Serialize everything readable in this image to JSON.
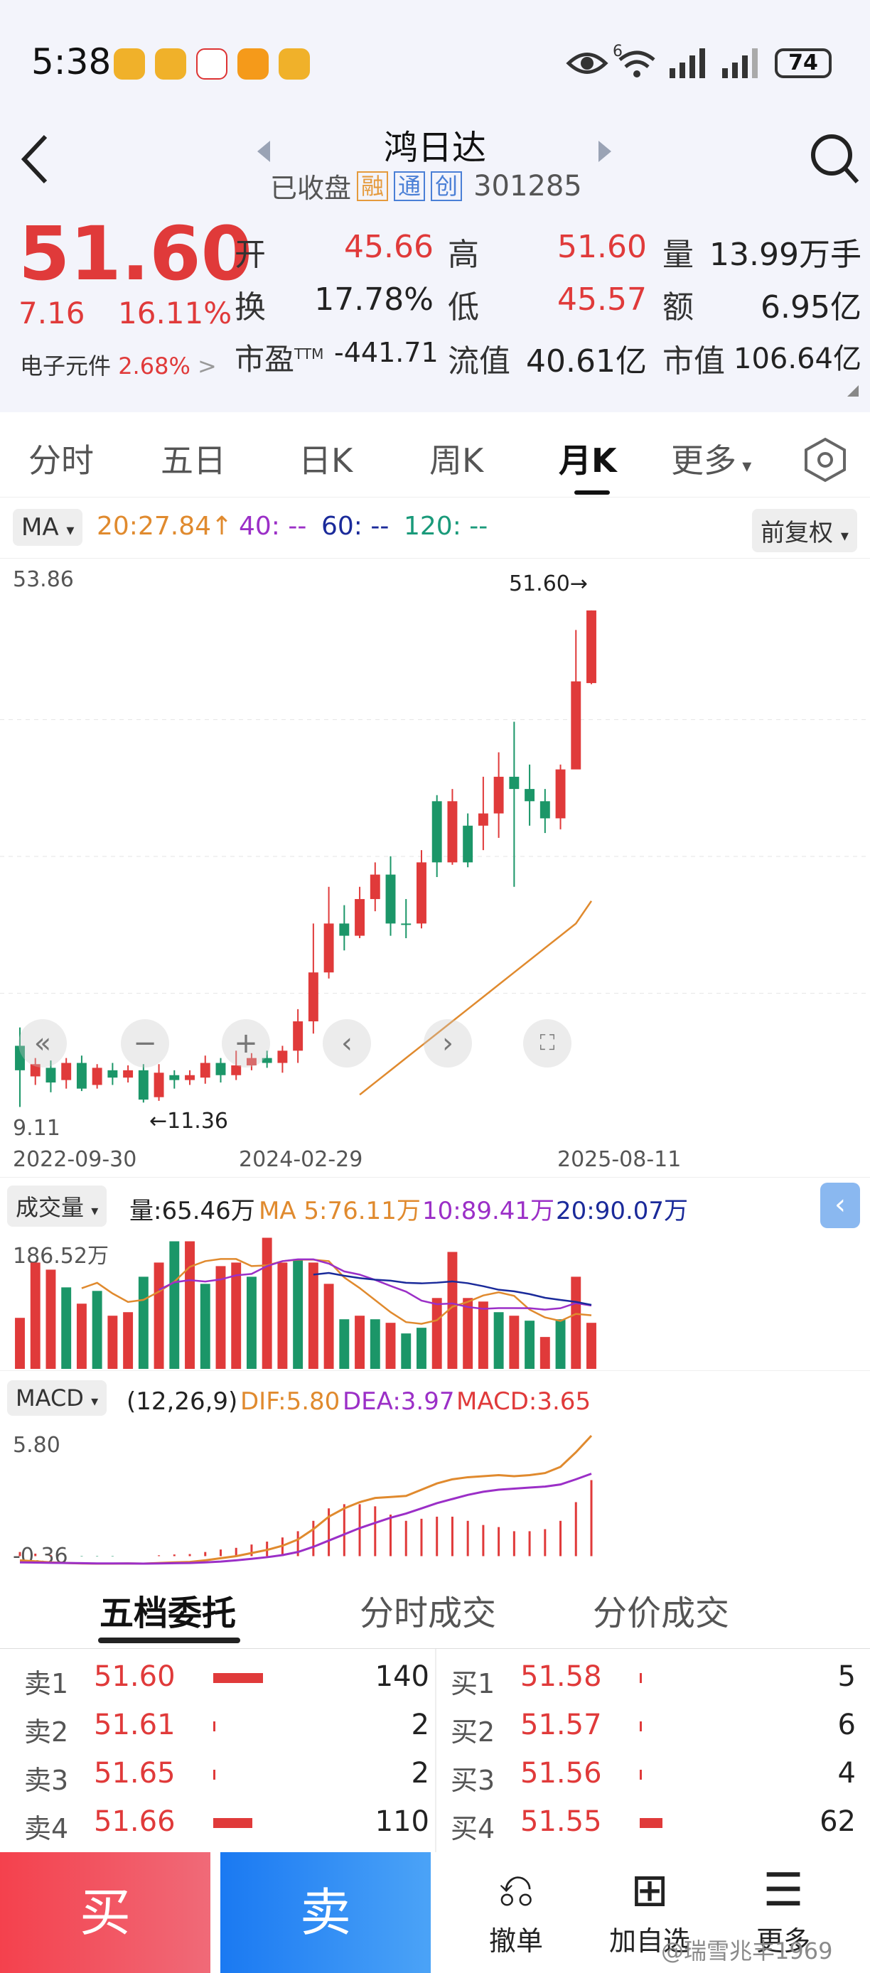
{
  "status_bar": {
    "time": "5:38",
    "battery": "74",
    "signal_label": "6"
  },
  "header": {
    "title": "鸿日达",
    "market_status": "已收盘",
    "tags": [
      "融",
      "通",
      "创"
    ],
    "code": "301285"
  },
  "quote": {
    "price": "51.60",
    "change": "7.16",
    "change_pct": "16.11%",
    "sector": "电子元件",
    "sector_pct": "2.68%",
    "fields": [
      {
        "label": "开",
        "value": "45.66",
        "red": true
      },
      {
        "label": "高",
        "value": "51.60",
        "red": true
      },
      {
        "label": "量",
        "value": "13.99万手",
        "red": false
      },
      {
        "label": "换",
        "value": "17.78%",
        "red": false
      },
      {
        "label": "低",
        "value": "45.57",
        "red": true
      },
      {
        "label": "额",
        "value": "6.95亿",
        "red": false
      },
      {
        "label": "市盈TTM",
        "value": "-441.71",
        "red": false
      },
      {
        "label": "流值",
        "value": "40.61亿",
        "red": false
      },
      {
        "label": "市值",
        "value": "106.64亿",
        "red": false
      }
    ]
  },
  "tabs": [
    "分时",
    "五日",
    "日K",
    "周K",
    "月K",
    "更多"
  ],
  "active_tab": "月K",
  "indicator": {
    "ma_selector": "MA",
    "ma20": "20:27.84",
    "ma20_arrow": "↑",
    "ma40": "40: --",
    "ma60": "60: --",
    "ma120": "120: --",
    "adjust": "前复权"
  },
  "kline": {
    "y_max": "53.86",
    "y_min": "9.11",
    "high_label": "51.60→",
    "low_label": "←11.36",
    "dates": [
      "2022-09-30",
      "2024-02-29",
      "2025-08-11"
    ]
  },
  "volume": {
    "selector": "成交量",
    "vol": "量:65.46万",
    "ma5": "MA 5:76.11万",
    "ma10": "10:89.41万",
    "ma20": "20:90.07万",
    "y_max": "186.52万"
  },
  "macd": {
    "selector": "MACD",
    "params": "(12,26,9)",
    "dif": "DIF:5.80",
    "dea": "DEA:3.97",
    "macd": "MACD:3.65",
    "y_max": "5.80",
    "y_min": "-0.36"
  },
  "orderbook": {
    "tabs": [
      "五档委托",
      "分时成交",
      "分价成交"
    ],
    "sell": [
      {
        "label": "卖1",
        "price": "51.60",
        "vol": "140",
        "ratio": 0.7
      },
      {
        "label": "卖2",
        "price": "51.61",
        "vol": "2",
        "ratio": 0.01
      },
      {
        "label": "卖3",
        "price": "51.65",
        "vol": "2",
        "ratio": 0.01
      },
      {
        "label": "卖4",
        "price": "51.66",
        "vol": "110",
        "ratio": 0.55
      }
    ],
    "buy": [
      {
        "label": "买1",
        "price": "51.58",
        "vol": "5",
        "ratio": 0.02
      },
      {
        "label": "买2",
        "price": "51.57",
        "vol": "6",
        "ratio": 0.02
      },
      {
        "label": "买3",
        "price": "51.56",
        "vol": "4",
        "ratio": 0.02
      },
      {
        "label": "买4",
        "price": "51.55",
        "vol": "62",
        "ratio": 0.32
      }
    ]
  },
  "bottom": {
    "buy": "买",
    "sell": "卖",
    "cancel": "撤单",
    "add_watch": "加自选",
    "more": "更多"
  },
  "watermark": "@瑞雪兆丰1969",
  "chart_data": {
    "type": "candlestick",
    "title": "",
    "period": "monthly",
    "x_start": "2022-09-30",
    "x_end": "2025-08-11",
    "ylim": [
      9.11,
      53.86
    ],
    "candles": [
      [
        16,
        14,
        17.5,
        11,
        1
      ],
      [
        13.5,
        14.5,
        15,
        12.8,
        0
      ],
      [
        14.2,
        13,
        14.8,
        12.2,
        1
      ],
      [
        13.2,
        14.6,
        15,
        12.5,
        0
      ],
      [
        14.6,
        12.5,
        15.2,
        12.3,
        1
      ],
      [
        12.8,
        14.2,
        14.5,
        12.5,
        0
      ],
      [
        14,
        13.4,
        14.6,
        12.8,
        1
      ],
      [
        13.4,
        14,
        14.4,
        13,
        0
      ],
      [
        14,
        11.6,
        14.5,
        11.36,
        1
      ],
      [
        11.8,
        13.8,
        14.5,
        11.5,
        0
      ],
      [
        13.6,
        13.2,
        14,
        12.5,
        1
      ],
      [
        13.2,
        13.6,
        14,
        12.8,
        0
      ],
      [
        13.4,
        14.6,
        15.2,
        12.9,
        0
      ],
      [
        14.6,
        13.6,
        15,
        13,
        1
      ],
      [
        13.6,
        14.4,
        15.6,
        13.2,
        0
      ],
      [
        14.4,
        15,
        15.4,
        14,
        0
      ],
      [
        15,
        14.6,
        15.6,
        14.2,
        1
      ],
      [
        14.6,
        15.6,
        16,
        13.8,
        0
      ],
      [
        15.6,
        18,
        19,
        14.6,
        0
      ],
      [
        18,
        22,
        26,
        17,
        0
      ],
      [
        22,
        26,
        29,
        21.5,
        0
      ],
      [
        26,
        25,
        27.5,
        23.8,
        1
      ],
      [
        25,
        28,
        29,
        24.8,
        0
      ],
      [
        28,
        30,
        31,
        27,
        0
      ],
      [
        30,
        26,
        31.5,
        25,
        1
      ],
      [
        26,
        26,
        28,
        24.8,
        1
      ],
      [
        26,
        31,
        32,
        25.6,
        0
      ],
      [
        31,
        36,
        36.5,
        29.8,
        1
      ],
      [
        36,
        31,
        37,
        30.8,
        0
      ],
      [
        31,
        34,
        35,
        30.6,
        1
      ],
      [
        34,
        35,
        38,
        32,
        0
      ],
      [
        35,
        38,
        40,
        33,
        0
      ],
      [
        38,
        37,
        42.5,
        29,
        1
      ],
      [
        37,
        36,
        39,
        34,
        1
      ],
      [
        36,
        34.6,
        37,
        33.4,
        1
      ],
      [
        34.6,
        38.6,
        39,
        33.7,
        0
      ],
      [
        38.6,
        45.8,
        50,
        44.8,
        0
      ],
      [
        45.66,
        51.6,
        51.6,
        45.57,
        0
      ]
    ],
    "ma20": [
      12,
      13,
      14,
      15,
      16,
      17,
      18,
      19,
      20,
      21,
      22,
      23,
      24,
      25,
      26,
      27.84
    ],
    "volume_y_max": 186.52,
    "volume": [
      [
        72,
        1
      ],
      [
        150,
        1
      ],
      [
        140,
        1
      ],
      [
        115,
        0
      ],
      [
        92,
        1
      ],
      [
        110,
        0
      ],
      [
        75,
        1
      ],
      [
        80,
        1
      ],
      [
        130,
        0
      ],
      [
        150,
        1
      ],
      [
        180,
        0
      ],
      [
        180,
        1
      ],
      [
        120,
        0
      ],
      [
        145,
        1
      ],
      [
        150,
        1
      ],
      [
        130,
        0
      ],
      [
        185,
        1
      ],
      [
        150,
        1
      ],
      [
        155,
        0
      ],
      [
        150,
        1
      ],
      [
        120,
        1
      ],
      [
        70,
        0
      ],
      [
        75,
        1
      ],
      [
        70,
        0
      ],
      [
        65,
        1
      ],
      [
        50,
        0
      ],
      [
        58,
        0
      ],
      [
        100,
        1
      ],
      [
        165,
        1
      ],
      [
        100,
        1
      ],
      [
        95,
        1
      ],
      [
        80,
        0
      ],
      [
        75,
        1
      ],
      [
        68,
        0
      ],
      [
        45,
        1
      ],
      [
        70,
        0
      ],
      [
        130,
        1
      ],
      [
        65,
        1
      ]
    ],
    "macd_y": [
      -0.36,
      5.8
    ],
    "dif": [
      -0.2,
      -0.25,
      -0.3,
      -0.33,
      -0.35,
      -0.36,
      -0.36,
      -0.35,
      -0.36,
      -0.33,
      -0.3,
      -0.28,
      -0.2,
      -0.1,
      0.0,
      0.15,
      0.3,
      0.5,
      0.8,
      1.3,
      1.9,
      2.3,
      2.6,
      2.8,
      2.85,
      2.9,
      3.2,
      3.5,
      3.7,
      3.8,
      3.85,
      3.9,
      3.85,
      3.9,
      4.0,
      4.3,
      5.0,
      5.8
    ],
    "dea": [
      -0.3,
      -0.31,
      -0.32,
      -0.33,
      -0.34,
      -0.35,
      -0.35,
      -0.35,
      -0.36,
      -0.35,
      -0.34,
      -0.33,
      -0.3,
      -0.26,
      -0.2,
      -0.13,
      -0.05,
      0.05,
      0.2,
      0.45,
      0.75,
      1.05,
      1.35,
      1.6,
      1.85,
      2.05,
      2.3,
      2.55,
      2.75,
      2.95,
      3.1,
      3.2,
      3.25,
      3.3,
      3.35,
      3.45,
      3.7,
      3.97
    ]
  }
}
